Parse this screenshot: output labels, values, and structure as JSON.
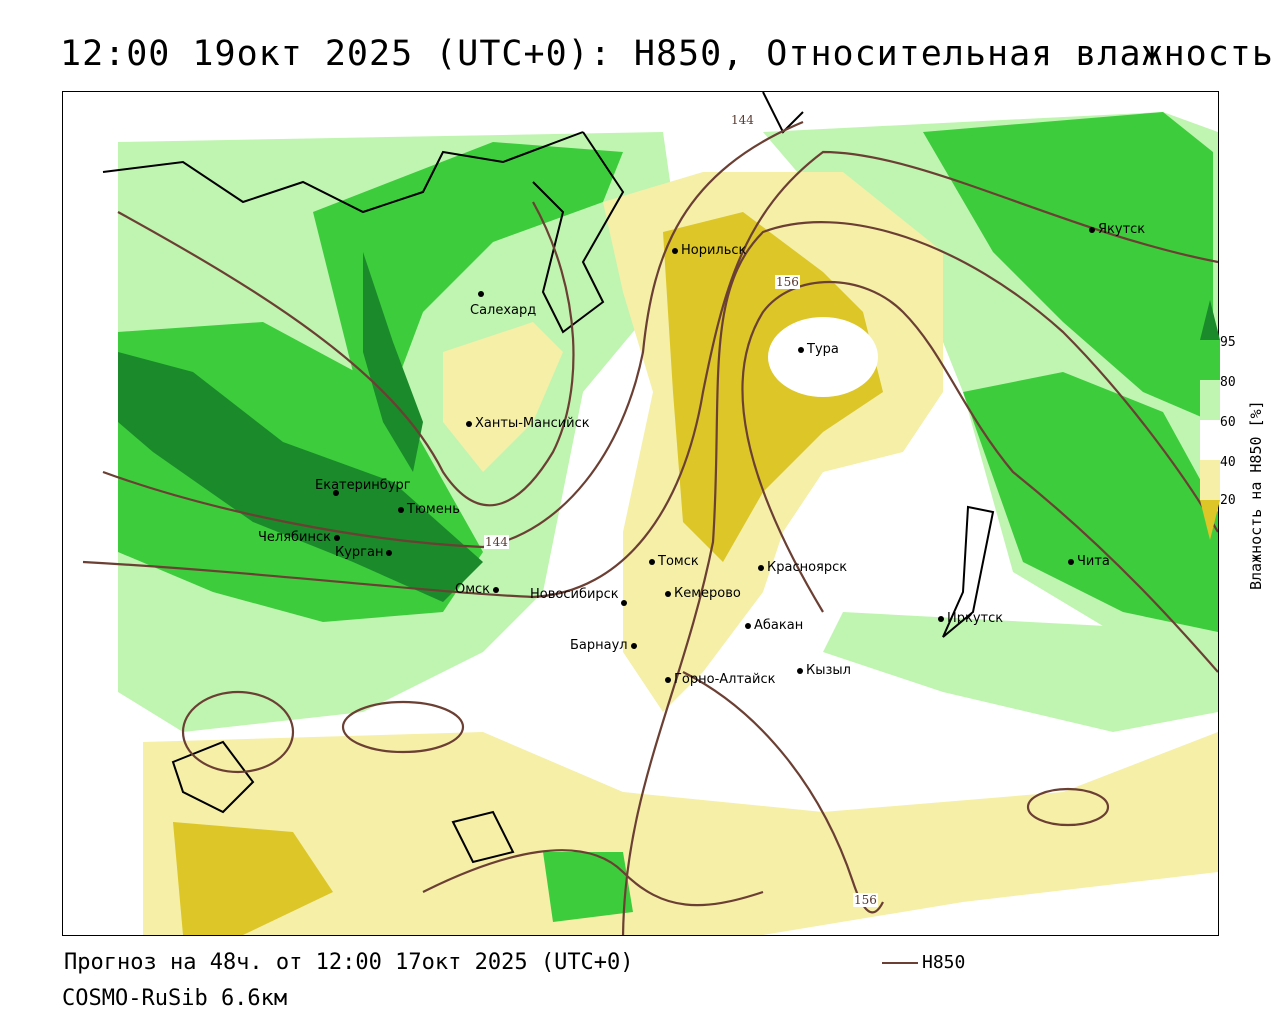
{
  "title": "12:00 19окт 2025 (UTC+0): H850, Относительная влажность",
  "footer": {
    "forecast": "Прогноз на 48ч. от 12:00 17окт 2025 (UTC+0)",
    "model": "COSMO-RuSib 6.6км"
  },
  "legend": {
    "line_label": "H850",
    "line_color": "#6b3f33"
  },
  "colorbar": {
    "title": "Влажность на H850 [%]",
    "ticks": [
      "95",
      "80",
      "60",
      "40",
      "20"
    ],
    "colors": {
      "c95": "#1a8a2a",
      "c80": "#3ccc3c",
      "c60": "#bff5b0",
      "c40": "#ffffff",
      "c20": "#f5efa8",
      "c0": "#dcc628"
    }
  },
  "cities": [
    {
      "name": "Якутск"
    },
    {
      "name": "Норильск"
    },
    {
      "name": "Салехард"
    },
    {
      "name": "Тура"
    },
    {
      "name": "Ханты-Мансийск"
    },
    {
      "name": "Екатеринбург"
    },
    {
      "name": "Тюмень"
    },
    {
      "name": "Челябинск"
    },
    {
      "name": "Курган"
    },
    {
      "name": "Омск"
    },
    {
      "name": "Новосибирск"
    },
    {
      "name": "Томск"
    },
    {
      "name": "Кемерово"
    },
    {
      "name": "Красноярск"
    },
    {
      "name": "Абакан"
    },
    {
      "name": "Барнаул"
    },
    {
      "name": "Горно-Алтайск"
    },
    {
      "name": "Кызыл"
    },
    {
      "name": "Иркутск"
    },
    {
      "name": "Чита"
    }
  ],
  "isolines": [
    "144",
    "156",
    "156",
    "144"
  ]
}
